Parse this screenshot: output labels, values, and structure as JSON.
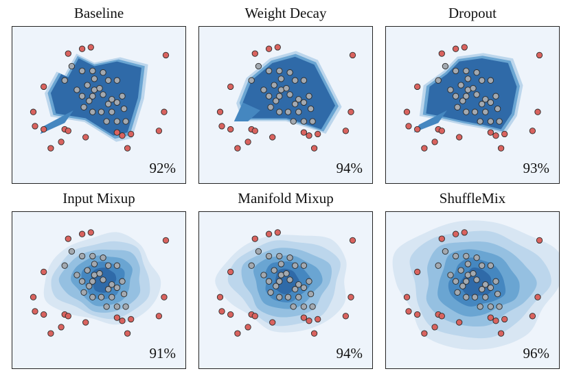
{
  "colors": {
    "background": "#eef4fb",
    "contour_levels": [
      "#d8e6f3",
      "#bcd6ec",
      "#95c0e1",
      "#6aa5d2",
      "#4587c0",
      "#2f6aa8"
    ],
    "outer_points": "#d9635f",
    "inner_points": "#a3a9b0",
    "point_edge": "#2b2b2b"
  },
  "chart_data": [
    {
      "type": "scatter",
      "title": "Baseline",
      "annotation": "92%",
      "decision_region": "sharp-polygon",
      "core": [
        [
          0.28,
          0.7
        ],
        [
          0.32,
          0.68
        ],
        [
          0.38,
          0.8
        ],
        [
          0.47,
          0.75
        ],
        [
          0.6,
          0.78
        ],
        [
          0.74,
          0.74
        ],
        [
          0.72,
          0.55
        ],
        [
          0.66,
          0.33
        ],
        [
          0.58,
          0.31
        ],
        [
          0.42,
          0.42
        ],
        [
          0.25,
          0.45
        ],
        [
          0.22,
          0.58
        ]
      ],
      "tail": [
        [
          0.18,
          0.37
        ],
        [
          0.35,
          0.47
        ],
        [
          0.3,
          0.39
        ],
        [
          0.16,
          0.32
        ]
      ],
      "outer_points": [
        [
          0.32,
          0.83
        ],
        [
          0.4,
          0.86
        ],
        [
          0.45,
          0.87
        ],
        [
          0.88,
          0.82
        ],
        [
          0.18,
          0.62
        ],
        [
          0.12,
          0.46
        ],
        [
          0.13,
          0.37
        ],
        [
          0.18,
          0.35
        ],
        [
          0.3,
          0.35
        ],
        [
          0.32,
          0.34
        ],
        [
          0.28,
          0.27
        ],
        [
          0.22,
          0.23
        ],
        [
          0.42,
          0.3
        ],
        [
          0.6,
          0.33
        ],
        [
          0.63,
          0.31
        ],
        [
          0.66,
          0.23
        ],
        [
          0.68,
          0.32
        ],
        [
          0.87,
          0.46
        ],
        [
          0.84,
          0.34
        ]
      ],
      "inner_points": [
        [
          0.34,
          0.75
        ],
        [
          0.3,
          0.66
        ],
        [
          0.4,
          0.72
        ],
        [
          0.46,
          0.72
        ],
        [
          0.52,
          0.71
        ],
        [
          0.55,
          0.66
        ],
        [
          0.6,
          0.66
        ],
        [
          0.47,
          0.67
        ],
        [
          0.43,
          0.63
        ],
        [
          0.37,
          0.6
        ],
        [
          0.4,
          0.56
        ],
        [
          0.44,
          0.53
        ],
        [
          0.46,
          0.56
        ],
        [
          0.47,
          0.6
        ],
        [
          0.5,
          0.61
        ],
        [
          0.52,
          0.57
        ],
        [
          0.55,
          0.51
        ],
        [
          0.57,
          0.54
        ],
        [
          0.41,
          0.49
        ],
        [
          0.46,
          0.46
        ],
        [
          0.51,
          0.46
        ],
        [
          0.57,
          0.46
        ],
        [
          0.6,
          0.52
        ],
        [
          0.63,
          0.56
        ],
        [
          0.64,
          0.48
        ],
        [
          0.54,
          0.4
        ],
        [
          0.6,
          0.4
        ],
        [
          0.65,
          0.4
        ]
      ]
    },
    {
      "type": "scatter",
      "title": "Weight Decay",
      "annotation": "94%",
      "decision_region": "sharp-polygon",
      "core": [
        [
          0.25,
          0.52
        ],
        [
          0.3,
          0.66
        ],
        [
          0.42,
          0.77
        ],
        [
          0.55,
          0.81
        ],
        [
          0.66,
          0.76
        ],
        [
          0.72,
          0.63
        ],
        [
          0.78,
          0.5
        ],
        [
          0.7,
          0.35
        ],
        [
          0.62,
          0.38
        ],
        [
          0.5,
          0.42
        ],
        [
          0.38,
          0.42
        ],
        [
          0.28,
          0.42
        ]
      ],
      "tail": [
        [
          0.2,
          0.4
        ],
        [
          0.25,
          0.52
        ],
        [
          0.35,
          0.47
        ],
        [
          0.28,
          0.4
        ]
      ],
      "outer_points": [
        [
          0.32,
          0.83
        ],
        [
          0.4,
          0.86
        ],
        [
          0.45,
          0.87
        ],
        [
          0.88,
          0.82
        ],
        [
          0.18,
          0.62
        ],
        [
          0.12,
          0.46
        ],
        [
          0.13,
          0.37
        ],
        [
          0.18,
          0.35
        ],
        [
          0.3,
          0.35
        ],
        [
          0.32,
          0.34
        ],
        [
          0.28,
          0.27
        ],
        [
          0.22,
          0.23
        ],
        [
          0.42,
          0.3
        ],
        [
          0.6,
          0.33
        ],
        [
          0.63,
          0.31
        ],
        [
          0.66,
          0.23
        ],
        [
          0.68,
          0.32
        ],
        [
          0.87,
          0.46
        ],
        [
          0.84,
          0.34
        ]
      ],
      "inner_points": [
        [
          0.34,
          0.75
        ],
        [
          0.3,
          0.66
        ],
        [
          0.4,
          0.72
        ],
        [
          0.46,
          0.72
        ],
        [
          0.52,
          0.71
        ],
        [
          0.55,
          0.66
        ],
        [
          0.6,
          0.66
        ],
        [
          0.47,
          0.67
        ],
        [
          0.43,
          0.63
        ],
        [
          0.37,
          0.6
        ],
        [
          0.4,
          0.56
        ],
        [
          0.44,
          0.53
        ],
        [
          0.46,
          0.56
        ],
        [
          0.47,
          0.6
        ],
        [
          0.5,
          0.61
        ],
        [
          0.52,
          0.57
        ],
        [
          0.55,
          0.51
        ],
        [
          0.57,
          0.54
        ],
        [
          0.41,
          0.49
        ],
        [
          0.46,
          0.46
        ],
        [
          0.51,
          0.46
        ],
        [
          0.57,
          0.46
        ],
        [
          0.6,
          0.52
        ],
        [
          0.63,
          0.56
        ],
        [
          0.64,
          0.48
        ],
        [
          0.54,
          0.4
        ],
        [
          0.6,
          0.4
        ],
        [
          0.65,
          0.4
        ]
      ]
    },
    {
      "type": "scatter",
      "title": "Dropout",
      "annotation": "93%",
      "decision_region": "sharp-polygon",
      "core": [
        [
          0.25,
          0.62
        ],
        [
          0.35,
          0.7
        ],
        [
          0.42,
          0.78
        ],
        [
          0.55,
          0.8
        ],
        [
          0.7,
          0.77
        ],
        [
          0.75,
          0.62
        ],
        [
          0.72,
          0.45
        ],
        [
          0.66,
          0.35
        ],
        [
          0.55,
          0.38
        ],
        [
          0.45,
          0.4
        ],
        [
          0.33,
          0.43
        ],
        [
          0.23,
          0.45
        ]
      ],
      "tail": [
        [
          0.19,
          0.38
        ],
        [
          0.35,
          0.47
        ],
        [
          0.3,
          0.39
        ],
        [
          0.16,
          0.33
        ]
      ],
      "outer_points": [
        [
          0.32,
          0.83
        ],
        [
          0.4,
          0.86
        ],
        [
          0.45,
          0.87
        ],
        [
          0.88,
          0.82
        ],
        [
          0.18,
          0.62
        ],
        [
          0.12,
          0.46
        ],
        [
          0.13,
          0.37
        ],
        [
          0.18,
          0.35
        ],
        [
          0.3,
          0.35
        ],
        [
          0.32,
          0.34
        ],
        [
          0.28,
          0.27
        ],
        [
          0.22,
          0.23
        ],
        [
          0.42,
          0.3
        ],
        [
          0.6,
          0.33
        ],
        [
          0.63,
          0.31
        ],
        [
          0.66,
          0.23
        ],
        [
          0.68,
          0.32
        ],
        [
          0.87,
          0.46
        ],
        [
          0.84,
          0.34
        ]
      ],
      "inner_points": [
        [
          0.34,
          0.75
        ],
        [
          0.3,
          0.66
        ],
        [
          0.4,
          0.72
        ],
        [
          0.46,
          0.72
        ],
        [
          0.52,
          0.71
        ],
        [
          0.55,
          0.66
        ],
        [
          0.6,
          0.66
        ],
        [
          0.47,
          0.67
        ],
        [
          0.43,
          0.63
        ],
        [
          0.37,
          0.6
        ],
        [
          0.4,
          0.56
        ],
        [
          0.44,
          0.53
        ],
        [
          0.46,
          0.56
        ],
        [
          0.47,
          0.6
        ],
        [
          0.5,
          0.61
        ],
        [
          0.52,
          0.57
        ],
        [
          0.55,
          0.51
        ],
        [
          0.57,
          0.54
        ],
        [
          0.41,
          0.49
        ],
        [
          0.46,
          0.46
        ],
        [
          0.51,
          0.46
        ],
        [
          0.57,
          0.46
        ],
        [
          0.6,
          0.52
        ],
        [
          0.63,
          0.56
        ],
        [
          0.64,
          0.48
        ],
        [
          0.54,
          0.4
        ],
        [
          0.6,
          0.4
        ],
        [
          0.65,
          0.4
        ]
      ]
    },
    {
      "type": "scatter",
      "title": "Input Mixup",
      "annotation": "91%",
      "decision_region": "smooth-contours",
      "center": [
        0.52,
        0.57
      ],
      "radii": [
        [
          0.33,
          0.28
        ],
        [
          0.28,
          0.24
        ],
        [
          0.23,
          0.2
        ],
        [
          0.17,
          0.16
        ],
        [
          0.12,
          0.12
        ],
        [
          0.07,
          0.08
        ]
      ],
      "outer_points": [
        [
          0.32,
          0.83
        ],
        [
          0.4,
          0.86
        ],
        [
          0.45,
          0.87
        ],
        [
          0.88,
          0.82
        ],
        [
          0.18,
          0.62
        ],
        [
          0.12,
          0.46
        ],
        [
          0.13,
          0.37
        ],
        [
          0.18,
          0.35
        ],
        [
          0.3,
          0.35
        ],
        [
          0.32,
          0.34
        ],
        [
          0.28,
          0.27
        ],
        [
          0.22,
          0.23
        ],
        [
          0.42,
          0.3
        ],
        [
          0.6,
          0.33
        ],
        [
          0.63,
          0.31
        ],
        [
          0.66,
          0.23
        ],
        [
          0.68,
          0.32
        ],
        [
          0.87,
          0.46
        ],
        [
          0.84,
          0.34
        ]
      ],
      "inner_points": [
        [
          0.34,
          0.75
        ],
        [
          0.3,
          0.66
        ],
        [
          0.4,
          0.72
        ],
        [
          0.46,
          0.72
        ],
        [
          0.52,
          0.71
        ],
        [
          0.55,
          0.66
        ],
        [
          0.6,
          0.66
        ],
        [
          0.47,
          0.67
        ],
        [
          0.43,
          0.63
        ],
        [
          0.37,
          0.6
        ],
        [
          0.4,
          0.56
        ],
        [
          0.44,
          0.53
        ],
        [
          0.46,
          0.56
        ],
        [
          0.47,
          0.6
        ],
        [
          0.5,
          0.61
        ],
        [
          0.52,
          0.57
        ],
        [
          0.55,
          0.51
        ],
        [
          0.57,
          0.54
        ],
        [
          0.41,
          0.49
        ],
        [
          0.46,
          0.46
        ],
        [
          0.51,
          0.46
        ],
        [
          0.57,
          0.46
        ],
        [
          0.6,
          0.52
        ],
        [
          0.63,
          0.56
        ],
        [
          0.64,
          0.48
        ],
        [
          0.54,
          0.4
        ],
        [
          0.6,
          0.4
        ],
        [
          0.65,
          0.4
        ]
      ]
    },
    {
      "type": "scatter",
      "title": "Manifold Mixup",
      "annotation": "94%",
      "decision_region": "smooth-contours",
      "center": [
        0.5,
        0.56
      ],
      "radii": [
        [
          0.37,
          0.31
        ],
        [
          0.31,
          0.27
        ],
        [
          0.25,
          0.22
        ],
        [
          0.19,
          0.17
        ],
        [
          0.13,
          0.13
        ],
        [
          0.07,
          0.08
        ]
      ],
      "outer_points": [
        [
          0.32,
          0.83
        ],
        [
          0.4,
          0.86
        ],
        [
          0.45,
          0.87
        ],
        [
          0.88,
          0.82
        ],
        [
          0.18,
          0.62
        ],
        [
          0.12,
          0.46
        ],
        [
          0.13,
          0.37
        ],
        [
          0.18,
          0.35
        ],
        [
          0.3,
          0.35
        ],
        [
          0.32,
          0.34
        ],
        [
          0.28,
          0.27
        ],
        [
          0.22,
          0.23
        ],
        [
          0.42,
          0.3
        ],
        [
          0.6,
          0.33
        ],
        [
          0.63,
          0.31
        ],
        [
          0.66,
          0.23
        ],
        [
          0.68,
          0.32
        ],
        [
          0.87,
          0.46
        ],
        [
          0.84,
          0.34
        ]
      ],
      "inner_points": [
        [
          0.34,
          0.75
        ],
        [
          0.3,
          0.66
        ],
        [
          0.4,
          0.72
        ],
        [
          0.46,
          0.72
        ],
        [
          0.52,
          0.71
        ],
        [
          0.55,
          0.66
        ],
        [
          0.6,
          0.66
        ],
        [
          0.47,
          0.67
        ],
        [
          0.43,
          0.63
        ],
        [
          0.37,
          0.6
        ],
        [
          0.4,
          0.56
        ],
        [
          0.44,
          0.53
        ],
        [
          0.46,
          0.56
        ],
        [
          0.47,
          0.6
        ],
        [
          0.5,
          0.61
        ],
        [
          0.52,
          0.57
        ],
        [
          0.55,
          0.51
        ],
        [
          0.57,
          0.54
        ],
        [
          0.41,
          0.49
        ],
        [
          0.46,
          0.46
        ],
        [
          0.51,
          0.46
        ],
        [
          0.57,
          0.46
        ],
        [
          0.6,
          0.52
        ],
        [
          0.63,
          0.56
        ],
        [
          0.64,
          0.48
        ],
        [
          0.54,
          0.4
        ],
        [
          0.6,
          0.4
        ],
        [
          0.65,
          0.4
        ]
      ]
    },
    {
      "type": "scatter",
      "title": "ShuffleMix",
      "annotation": "96%",
      "decision_region": "smooth-contours",
      "center": [
        0.52,
        0.55
      ],
      "radii": [
        [
          0.47,
          0.41
        ],
        [
          0.39,
          0.34
        ],
        [
          0.31,
          0.27
        ],
        [
          0.23,
          0.21
        ],
        [
          0.16,
          0.15
        ],
        [
          0.09,
          0.09
        ]
      ],
      "outer_points": [
        [
          0.32,
          0.83
        ],
        [
          0.4,
          0.86
        ],
        [
          0.45,
          0.87
        ],
        [
          0.88,
          0.82
        ],
        [
          0.18,
          0.62
        ],
        [
          0.12,
          0.46
        ],
        [
          0.13,
          0.37
        ],
        [
          0.18,
          0.35
        ],
        [
          0.3,
          0.35
        ],
        [
          0.32,
          0.34
        ],
        [
          0.28,
          0.27
        ],
        [
          0.22,
          0.23
        ],
        [
          0.42,
          0.3
        ],
        [
          0.6,
          0.33
        ],
        [
          0.63,
          0.31
        ],
        [
          0.66,
          0.23
        ],
        [
          0.68,
          0.32
        ],
        [
          0.87,
          0.46
        ],
        [
          0.84,
          0.34
        ]
      ],
      "inner_points": [
        [
          0.34,
          0.75
        ],
        [
          0.3,
          0.66
        ],
        [
          0.4,
          0.72
        ],
        [
          0.46,
          0.72
        ],
        [
          0.52,
          0.71
        ],
        [
          0.55,
          0.66
        ],
        [
          0.6,
          0.66
        ],
        [
          0.47,
          0.67
        ],
        [
          0.43,
          0.63
        ],
        [
          0.37,
          0.6
        ],
        [
          0.4,
          0.56
        ],
        [
          0.44,
          0.53
        ],
        [
          0.46,
          0.56
        ],
        [
          0.47,
          0.6
        ],
        [
          0.5,
          0.61
        ],
        [
          0.52,
          0.57
        ],
        [
          0.55,
          0.51
        ],
        [
          0.57,
          0.54
        ],
        [
          0.41,
          0.49
        ],
        [
          0.46,
          0.46
        ],
        [
          0.51,
          0.46
        ],
        [
          0.57,
          0.46
        ],
        [
          0.6,
          0.52
        ],
        [
          0.63,
          0.56
        ],
        [
          0.64,
          0.48
        ],
        [
          0.54,
          0.4
        ],
        [
          0.6,
          0.4
        ],
        [
          0.65,
          0.4
        ]
      ]
    }
  ]
}
